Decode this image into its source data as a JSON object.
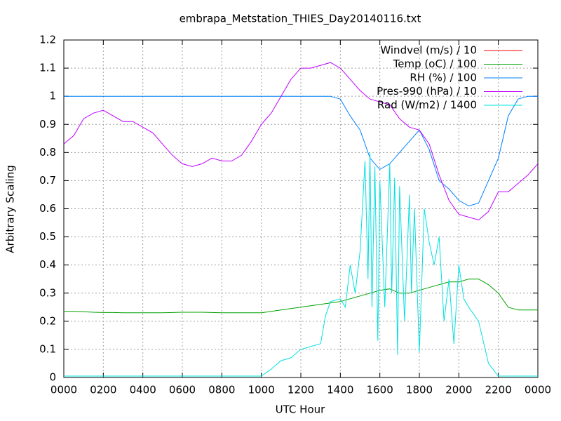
{
  "chart_data": {
    "type": "line",
    "title": "embrapa_Metstation_THIES_Day20140116.txt",
    "xlabel": "UTC Hour",
    "ylabel": "Arbitrary Scaling",
    "xlim": [
      0,
      24
    ],
    "ylim": [
      0,
      1.2
    ],
    "xticks": [
      {
        "value": 0,
        "label": "0000"
      },
      {
        "value": 2,
        "label": "0200"
      },
      {
        "value": 4,
        "label": "0400"
      },
      {
        "value": 6,
        "label": "0600"
      },
      {
        "value": 8,
        "label": "0800"
      },
      {
        "value": 10,
        "label": "1000"
      },
      {
        "value": 12,
        "label": "1200"
      },
      {
        "value": 14,
        "label": "1400"
      },
      {
        "value": 16,
        "label": "1600"
      },
      {
        "value": 18,
        "label": "1800"
      },
      {
        "value": 20,
        "label": "2000"
      },
      {
        "value": 22,
        "label": "2200"
      },
      {
        "value": 24,
        "label": "0000"
      }
    ],
    "yticks": [
      {
        "value": 0,
        "label": "0"
      },
      0.1,
      0.2,
      0.3,
      0.4,
      0.5,
      0.6,
      0.7,
      0.8,
      0.9,
      {
        "value": 1,
        "label": "1"
      },
      1.1,
      1.2
    ],
    "grid": true,
    "legend": "top-right",
    "x": [
      0,
      0.5,
      1,
      1.5,
      2,
      2.5,
      3,
      3.5,
      4,
      4.5,
      5,
      5.5,
      6,
      6.5,
      7,
      7.5,
      8,
      8.5,
      9,
      9.5,
      10,
      10.5,
      11,
      11.5,
      12,
      12.5,
      13,
      13.5,
      14,
      14.5,
      15,
      15.5,
      16,
      16.5,
      17,
      17.5,
      18,
      18.5,
      19,
      19.5,
      20,
      20.5,
      21,
      21.5,
      22,
      22.5,
      23,
      23.5,
      24
    ],
    "series": [
      {
        "name": "Windvel (m/s) / 10",
        "color": "#ff0000",
        "values": [
          null,
          null,
          null,
          null,
          null,
          null,
          null,
          null,
          null,
          null,
          null,
          null,
          null,
          null,
          null,
          null,
          null,
          null,
          null,
          null,
          null,
          null,
          null,
          null,
          null,
          null,
          null,
          null,
          null,
          null,
          null,
          null,
          null,
          null,
          null,
          null,
          null,
          null,
          null,
          null,
          null,
          null,
          null,
          null,
          null,
          null,
          null,
          null,
          null
        ]
      },
      {
        "name": "Temp (oC) / 100",
        "color": "#00a000",
        "values": [
          0.235,
          0.235,
          0.234,
          0.232,
          0.231,
          0.231,
          0.23,
          0.23,
          0.23,
          0.23,
          0.23,
          0.231,
          0.232,
          0.232,
          0.232,
          0.231,
          0.23,
          0.23,
          0.23,
          0.23,
          0.23,
          0.235,
          0.24,
          0.245,
          0.25,
          0.255,
          0.26,
          0.265,
          0.27,
          0.28,
          0.29,
          0.3,
          0.31,
          0.315,
          0.3,
          0.3,
          0.31,
          0.32,
          0.33,
          0.34,
          0.34,
          0.35,
          0.35,
          0.33,
          0.3,
          0.25,
          0.24,
          0.24,
          0.24
        ]
      },
      {
        "name": "RH (%) / 100",
        "color": "#0080ff",
        "values": [
          1,
          1,
          1,
          1,
          1,
          1,
          1,
          1,
          1,
          1,
          1,
          1,
          1,
          1,
          1,
          1,
          1,
          1,
          1,
          1,
          1,
          1,
          1,
          1,
          1,
          1,
          1,
          1,
          0.99,
          0.93,
          0.88,
          0.78,
          0.74,
          0.76,
          0.8,
          0.84,
          0.88,
          0.81,
          0.7,
          0.67,
          0.63,
          0.61,
          0.62,
          0.7,
          0.78,
          0.93,
          0.99,
          1,
          1
        ]
      },
      {
        "name": "Pres-990 (hPa) / 10",
        "color": "#c000ff",
        "values": [
          0.83,
          0.86,
          0.92,
          0.94,
          0.95,
          0.93,
          0.91,
          0.91,
          0.89,
          0.87,
          0.83,
          0.79,
          0.76,
          0.75,
          0.76,
          0.78,
          0.77,
          0.77,
          0.79,
          0.84,
          0.9,
          0.94,
          1,
          1.06,
          1.1,
          1.1,
          1.11,
          1.12,
          1.1,
          1.06,
          1.02,
          0.99,
          0.98,
          0.97,
          0.92,
          0.89,
          0.88,
          0.83,
          0.72,
          0.63,
          0.58,
          0.57,
          0.56,
          0.59,
          0.66,
          0.66,
          0.69,
          0.72,
          0.76
        ]
      },
      {
        "name": "Rad (W/m2) / 1400",
        "color": "#00e0e0",
        "x": [
          0,
          10,
          10.5,
          11,
          11.5,
          12,
          12.5,
          13,
          13.25,
          13.5,
          14,
          14.25,
          14.5,
          14.75,
          15,
          15.25,
          15.4,
          15.5,
          15.6,
          15.75,
          15.9,
          16,
          16.25,
          16.5,
          16.6,
          16.75,
          16.9,
          17,
          17.25,
          17.5,
          17.6,
          17.75,
          18,
          18.25,
          18.5,
          18.75,
          19,
          19.25,
          19.5,
          19.75,
          20,
          20.25,
          20.5,
          21,
          21.5,
          22,
          24
        ],
        "values": [
          0.005,
          0.005,
          0.03,
          0.06,
          0.07,
          0.1,
          0.11,
          0.12,
          0.22,
          0.27,
          0.28,
          0.25,
          0.4,
          0.3,
          0.45,
          0.77,
          0.35,
          0.8,
          0.25,
          0.75,
          0.13,
          0.7,
          0.25,
          0.76,
          0.3,
          0.71,
          0.08,
          0.68,
          0.2,
          0.65,
          0.3,
          0.6,
          0.09,
          0.6,
          0.48,
          0.4,
          0.5,
          0.2,
          0.35,
          0.12,
          0.4,
          0.28,
          0.25,
          0.2,
          0.05,
          0.005,
          0.005
        ]
      }
    ]
  }
}
